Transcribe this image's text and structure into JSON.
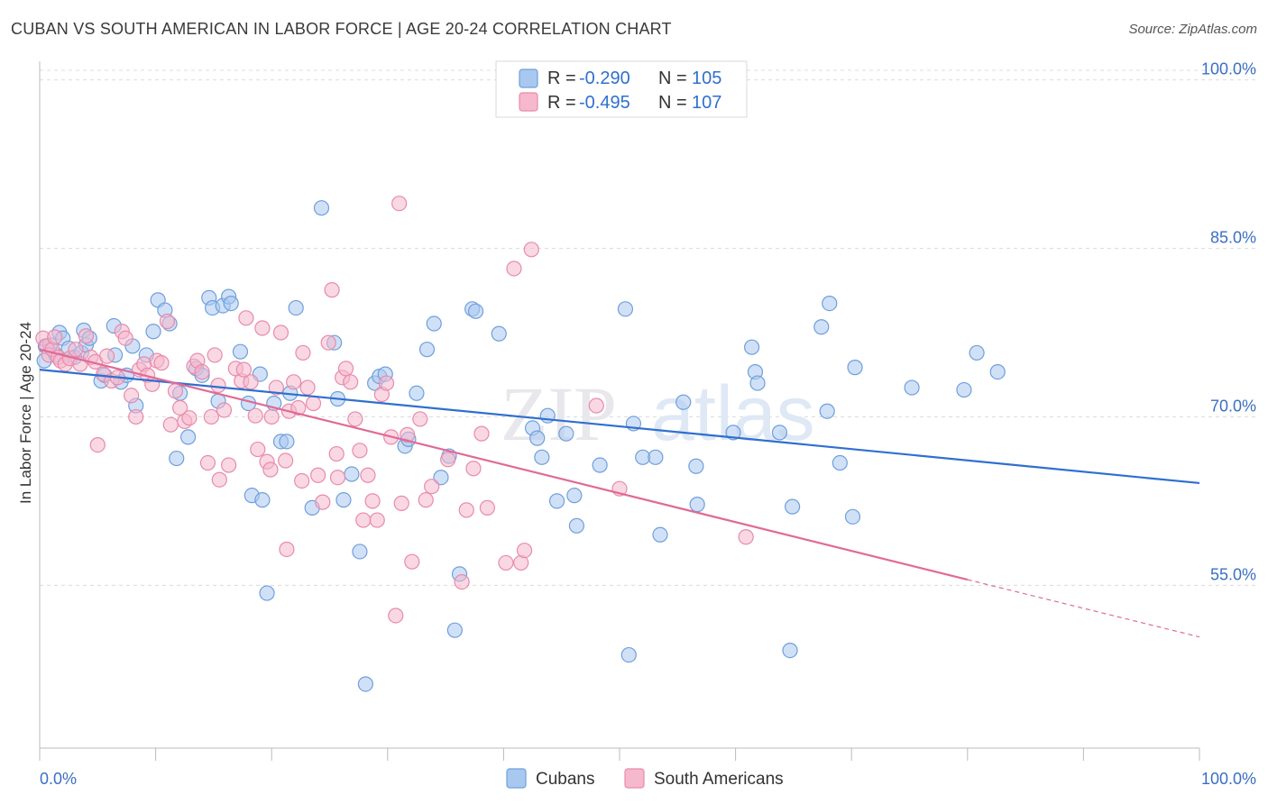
{
  "header": {
    "title": "CUBAN VS SOUTH AMERICAN IN LABOR FORCE | AGE 20-24 CORRELATION CHART",
    "source": "Source: ZipAtlas.com"
  },
  "watermark": "ZIPatlas",
  "legend": {
    "r_label": "R =",
    "n_label": "N =",
    "series": [
      {
        "r": "-0.290",
        "n": "105",
        "color": "#a9c8f0",
        "stroke": "#6f9fdc"
      },
      {
        "r": "-0.495",
        "n": "107",
        "color": "#f6b8cc",
        "stroke": "#e88aab"
      }
    ]
  },
  "bottom_legend": [
    "Cubans",
    "South Americans"
  ],
  "chart_data": {
    "type": "scatter",
    "title": "CUBAN VS SOUTH AMERICAN IN LABOR FORCE | AGE 20-24 CORRELATION CHART",
    "xlabel": "",
    "ylabel": "In Labor Force | Age 20-24",
    "xlim": [
      0,
      100
    ],
    "ylim": [
      40.5,
      102.3
    ],
    "x_tick_labels": [
      "0.0%",
      "100.0%"
    ],
    "y_ticks": [
      55,
      70,
      85,
      100
    ],
    "y_tick_labels": [
      "55.0%",
      "70.0%",
      "85.0%",
      "100.0%"
    ],
    "grid": true,
    "legend_position": "top-center",
    "series": [
      {
        "name": "Cubans",
        "color": "#a9c8f0",
        "line_color": "#2f6fd0",
        "trend": {
          "x0": 0,
          "y0": 74.2,
          "x1": 100,
          "y1": 64.1
        },
        "points": [
          [
            0.4,
            75.0
          ],
          [
            0.5,
            76.3
          ],
          [
            0.9,
            76.4
          ],
          [
            1.4,
            75.5
          ],
          [
            1.7,
            77.5
          ],
          [
            2.0,
            77.0
          ],
          [
            2.5,
            76.1
          ],
          [
            3.0,
            75.3
          ],
          [
            3.6,
            75.7
          ],
          [
            3.8,
            77.7
          ],
          [
            4.0,
            76.4
          ],
          [
            4.3,
            77.0
          ],
          [
            5.3,
            73.2
          ],
          [
            5.6,
            73.7
          ],
          [
            6.5,
            75.5
          ],
          [
            6.4,
            78.1
          ],
          [
            7.0,
            73.1
          ],
          [
            7.5,
            73.7
          ],
          [
            8.0,
            76.3
          ],
          [
            8.3,
            71.0
          ],
          [
            9.2,
            75.5
          ],
          [
            9.8,
            77.6
          ],
          [
            10.2,
            80.4
          ],
          [
            10.8,
            79.5
          ],
          [
            11.2,
            78.3
          ],
          [
            11.8,
            66.3
          ],
          [
            12.1,
            72.1
          ],
          [
            12.8,
            68.2
          ],
          [
            13.5,
            74.3
          ],
          [
            14.0,
            73.7
          ],
          [
            14.6,
            80.6
          ],
          [
            14.9,
            79.7
          ],
          [
            15.4,
            71.4
          ],
          [
            15.8,
            79.9
          ],
          [
            16.3,
            80.7
          ],
          [
            16.5,
            80.1
          ],
          [
            17.3,
            75.8
          ],
          [
            18.0,
            71.2
          ],
          [
            18.3,
            63.0
          ],
          [
            19.0,
            73.8
          ],
          [
            19.2,
            62.6
          ],
          [
            19.6,
            54.3
          ],
          [
            20.2,
            71.2
          ],
          [
            20.8,
            67.8
          ],
          [
            21.3,
            67.8
          ],
          [
            21.6,
            72.1
          ],
          [
            22.1,
            79.7
          ],
          [
            23.5,
            61.9
          ],
          [
            24.3,
            88.6
          ],
          [
            25.4,
            76.6
          ],
          [
            25.7,
            71.6
          ],
          [
            26.2,
            62.6
          ],
          [
            26.9,
            64.9
          ],
          [
            27.6,
            58.0
          ],
          [
            28.1,
            46.2
          ],
          [
            28.9,
            73.0
          ],
          [
            29.3,
            73.6
          ],
          [
            29.8,
            73.8
          ],
          [
            31.5,
            67.4
          ],
          [
            31.8,
            68.0
          ],
          [
            32.5,
            72.1
          ],
          [
            33.4,
            76.0
          ],
          [
            34.0,
            78.3
          ],
          [
            34.6,
            64.6
          ],
          [
            35.3,
            66.5
          ],
          [
            35.8,
            51.0
          ],
          [
            36.2,
            56.0
          ],
          [
            37.3,
            79.6
          ],
          [
            37.6,
            79.4
          ],
          [
            39.6,
            77.4
          ],
          [
            42.5,
            69.0
          ],
          [
            42.9,
            68.1
          ],
          [
            43.3,
            66.4
          ],
          [
            43.8,
            70.1
          ],
          [
            44.6,
            62.5
          ],
          [
            45.4,
            68.5
          ],
          [
            46.1,
            63.0
          ],
          [
            46.3,
            60.3
          ],
          [
            48.3,
            65.7
          ],
          [
            50.5,
            79.6
          ],
          [
            50.8,
            48.8
          ],
          [
            51.2,
            69.4
          ],
          [
            52.0,
            66.4
          ],
          [
            53.1,
            66.4
          ],
          [
            53.5,
            59.5
          ],
          [
            55.5,
            71.3
          ],
          [
            56.6,
            65.6
          ],
          [
            56.7,
            62.2
          ],
          [
            59.8,
            68.6
          ],
          [
            61.4,
            76.2
          ],
          [
            61.7,
            74.0
          ],
          [
            61.9,
            73.0
          ],
          [
            63.8,
            68.6
          ],
          [
            64.7,
            49.2
          ],
          [
            64.9,
            62.0
          ],
          [
            67.4,
            78.0
          ],
          [
            67.9,
            70.5
          ],
          [
            68.1,
            80.1
          ],
          [
            69.0,
            65.9
          ],
          [
            70.1,
            61.1
          ],
          [
            70.3,
            74.4
          ],
          [
            75.2,
            72.6
          ],
          [
            79.7,
            72.4
          ],
          [
            80.8,
            75.7
          ],
          [
            82.6,
            74.0
          ]
        ]
      },
      {
        "name": "South Americans",
        "color": "#f6b8cc",
        "line_color": "#e06a96",
        "trend": {
          "x0": 0,
          "y0": 76.0,
          "x1": 80,
          "y1": 55.5
        },
        "trend_dashed": {
          "x0": 80,
          "y0": 55.5,
          "x1": 100,
          "y1": 50.4
        },
        "points": [
          [
            0.3,
            77.0
          ],
          [
            0.6,
            76.3
          ],
          [
            0.8,
            75.5
          ],
          [
            1.1,
            76.0
          ],
          [
            1.3,
            77.1
          ],
          [
            1.6,
            75.3
          ],
          [
            1.8,
            75.0
          ],
          [
            2.2,
            74.7
          ],
          [
            2.6,
            75.2
          ],
          [
            3.1,
            76.0
          ],
          [
            3.5,
            74.7
          ],
          [
            4.0,
            77.2
          ],
          [
            4.4,
            75.3
          ],
          [
            4.8,
            74.9
          ],
          [
            5.0,
            67.5
          ],
          [
            5.5,
            73.8
          ],
          [
            5.8,
            75.4
          ],
          [
            6.2,
            73.2
          ],
          [
            6.7,
            73.5
          ],
          [
            7.1,
            77.6
          ],
          [
            7.4,
            77.0
          ],
          [
            7.9,
            71.9
          ],
          [
            8.3,
            70.0
          ],
          [
            8.6,
            74.2
          ],
          [
            9.0,
            74.7
          ],
          [
            9.3,
            73.7
          ],
          [
            9.7,
            72.9
          ],
          [
            10.1,
            75.0
          ],
          [
            10.5,
            74.8
          ],
          [
            11.0,
            78.5
          ],
          [
            11.3,
            69.3
          ],
          [
            11.7,
            72.3
          ],
          [
            12.1,
            70.8
          ],
          [
            12.5,
            69.6
          ],
          [
            12.9,
            69.9
          ],
          [
            13.3,
            74.5
          ],
          [
            13.6,
            75.0
          ],
          [
            14.0,
            74.0
          ],
          [
            14.5,
            65.9
          ],
          [
            14.8,
            70.0
          ],
          [
            15.1,
            75.5
          ],
          [
            15.5,
            64.4
          ],
          [
            15.9,
            70.6
          ],
          [
            16.3,
            65.7
          ],
          [
            16.9,
            74.3
          ],
          [
            17.4,
            73.2
          ],
          [
            17.8,
            78.8
          ],
          [
            18.2,
            73.1
          ],
          [
            18.6,
            70.1
          ],
          [
            18.8,
            67.1
          ],
          [
            19.2,
            77.9
          ],
          [
            19.6,
            66.0
          ],
          [
            20.0,
            70.0
          ],
          [
            20.4,
            72.6
          ],
          [
            20.8,
            77.5
          ],
          [
            21.2,
            66.1
          ],
          [
            21.5,
            70.5
          ],
          [
            21.9,
            73.1
          ],
          [
            22.3,
            70.8
          ],
          [
            22.7,
            75.7
          ],
          [
            23.1,
            72.6
          ],
          [
            23.6,
            71.2
          ],
          [
            24.0,
            64.8
          ],
          [
            24.4,
            62.4
          ],
          [
            24.9,
            76.6
          ],
          [
            25.2,
            81.3
          ],
          [
            25.6,
            66.7
          ],
          [
            26.1,
            73.5
          ],
          [
            26.4,
            74.3
          ],
          [
            26.8,
            73.1
          ],
          [
            27.2,
            69.8
          ],
          [
            27.6,
            67.0
          ],
          [
            27.9,
            60.8
          ],
          [
            28.3,
            64.8
          ],
          [
            28.7,
            62.5
          ],
          [
            29.1,
            60.8
          ],
          [
            29.5,
            72.0
          ],
          [
            29.9,
            73.0
          ],
          [
            30.3,
            68.2
          ],
          [
            30.7,
            52.3
          ],
          [
            31.2,
            62.3
          ],
          [
            31.7,
            68.4
          ],
          [
            32.1,
            57.1
          ],
          [
            32.8,
            69.8
          ],
          [
            33.3,
            62.6
          ],
          [
            33.8,
            63.8
          ],
          [
            35.2,
            66.2
          ],
          [
            36.4,
            55.3
          ],
          [
            36.8,
            61.7
          ],
          [
            37.4,
            65.4
          ],
          [
            38.1,
            68.5
          ],
          [
            38.6,
            61.9
          ],
          [
            40.2,
            57.0
          ],
          [
            40.9,
            83.2
          ],
          [
            41.5,
            57.0
          ],
          [
            41.8,
            58.1
          ],
          [
            42.4,
            84.9
          ],
          [
            48.0,
            71.0
          ],
          [
            50.0,
            63.6
          ],
          [
            60.9,
            59.3
          ],
          [
            31.0,
            89.0
          ],
          [
            21.3,
            58.2
          ],
          [
            17.6,
            74.2
          ],
          [
            15.4,
            72.8
          ],
          [
            19.9,
            65.3
          ],
          [
            22.6,
            64.3
          ],
          [
            25.7,
            64.6
          ]
        ]
      }
    ]
  }
}
